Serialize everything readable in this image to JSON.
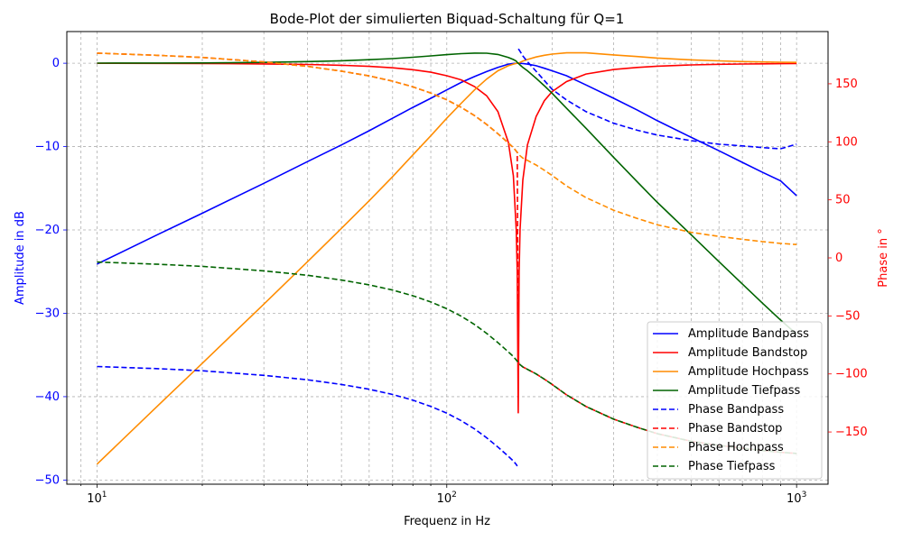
{
  "chart_data": {
    "type": "line",
    "title": "Bode-Plot der simulierten Biquad-Schaltung für Q=1",
    "xlabel": "Frequenz in Hz",
    "ylabel_left": "Amplitude in dB",
    "ylabel_right": "Phase in °",
    "xscale": "log",
    "xlim": [
      8.2,
      1230
    ],
    "ylim_left": [
      -50.5,
      3.8
    ],
    "ylim_right": [
      -195,
      195
    ],
    "x_ticks": [
      10,
      100,
      1000
    ],
    "x_tick_labels": [
      "10^1",
      "10^2",
      "10^3"
    ],
    "y_left_ticks": [
      -50,
      -40,
      -30,
      -20,
      -10,
      0
    ],
    "y_left_tick_labels": [
      "−50",
      "−40",
      "−30",
      "−20",
      "−10",
      "0"
    ],
    "y_right_ticks": [
      -150,
      -100,
      -50,
      0,
      50,
      100,
      150
    ],
    "y_right_tick_labels": [
      "−150",
      "−100",
      "−50",
      "0",
      "50",
      "100",
      "150"
    ],
    "left_axis_color": "#0000ff",
    "right_axis_color": "#ff0000",
    "grid": true,
    "legend_position": "lower-right",
    "filter": {
      "f0": 160,
      "Q": 1
    },
    "x": [
      10,
      15,
      20,
      30,
      40,
      50,
      60,
      70,
      80,
      90,
      100,
      110,
      120,
      130,
      140,
      150,
      155,
      158,
      159,
      160,
      161,
      162,
      165,
      170,
      180,
      190,
      200,
      220,
      250,
      300,
      350,
      400,
      500,
      600,
      700,
      800,
      900,
      1000
    ],
    "series": [
      {
        "name": "Amplitude Bandpass",
        "axis": "left",
        "color": "#0000ff",
        "dash": "solid",
        "values": [
          -24.1,
          -20.5,
          -18.0,
          -14.4,
          -11.8,
          -9.8,
          -8.1,
          -6.6,
          -5.3,
          -4.2,
          -3.2,
          -2.3,
          -1.6,
          -1.0,
          -0.5,
          -0.1,
          -0.03,
          -0.01,
          0,
          0,
          0,
          -0.01,
          -0.04,
          -0.1,
          -0.3,
          -0.6,
          -0.9,
          -1.5,
          -2.6,
          -4.2,
          -5.6,
          -6.9,
          -8.9,
          -10.5,
          -11.9,
          -13.1,
          -14.1,
          -15.9
        ]
      },
      {
        "name": "Amplitude Bandstop",
        "axis": "left",
        "color": "#ff0000",
        "dash": "solid",
        "values": [
          -0.01,
          -0.02,
          -0.03,
          -0.08,
          -0.15,
          -0.25,
          -0.38,
          -0.55,
          -0.78,
          -1.08,
          -1.5,
          -2.0,
          -2.8,
          -3.9,
          -5.8,
          -9.5,
          -13.5,
          -20.0,
          -25.0,
          -42.0,
          -25.0,
          -20.0,
          -14.0,
          -9.8,
          -6.4,
          -4.5,
          -3.4,
          -2.2,
          -1.3,
          -0.75,
          -0.5,
          -0.35,
          -0.2,
          -0.13,
          -0.09,
          -0.07,
          -0.05,
          -0.04
        ]
      },
      {
        "name": "Amplitude Hochpass",
        "axis": "left",
        "color": "#ff8c00",
        "dash": "solid",
        "values": [
          -48.1,
          -41.0,
          -36.0,
          -28.9,
          -23.8,
          -19.8,
          -16.5,
          -13.6,
          -11.0,
          -8.7,
          -6.6,
          -4.8,
          -3.2,
          -1.9,
          -0.9,
          -0.3,
          -0.1,
          -0.02,
          0,
          0,
          0.03,
          0.1,
          0.25,
          0.45,
          0.75,
          0.95,
          1.1,
          1.25,
          1.25,
          1.0,
          0.8,
          0.62,
          0.4,
          0.28,
          0.2,
          0.15,
          0.12,
          0.1
        ]
      },
      {
        "name": "Amplitude Tiefpass",
        "axis": "left",
        "color": "#006400",
        "dash": "solid",
        "values": [
          0.01,
          0.02,
          0.04,
          0.1,
          0.2,
          0.3,
          0.42,
          0.56,
          0.72,
          0.88,
          1.03,
          1.15,
          1.22,
          1.2,
          1.05,
          0.7,
          0.45,
          0.25,
          0.1,
          0,
          -0.1,
          -0.2,
          -0.5,
          -0.9,
          -1.8,
          -2.7,
          -3.6,
          -5.4,
          -7.8,
          -11.3,
          -14.2,
          -16.7,
          -20.6,
          -23.8,
          -26.5,
          -28.8,
          -30.8,
          -32.5
        ]
      },
      {
        "name": "Phase Bandpass",
        "axis": "right",
        "color": "#0000ff",
        "dash": "dashed",
        "values": [
          -93.6,
          -95.5,
          -97.3,
          -101.2,
          -105.0,
          -109.1,
          -113.2,
          -117.7,
          -122.6,
          -128.0,
          -133.8,
          -140.3,
          -147.4,
          -155.0,
          -163.0,
          -171.0,
          -175.0,
          -178.0,
          -179.4,
          180,
          179.2,
          178.0,
          174.0,
          169.0,
          160.8,
          152.8,
          145.3,
          136.0,
          126.0,
          116.0,
          110.0,
          105.8,
          101.0,
          98.0,
          96.5,
          95.0,
          94.0,
          98.0
        ]
      },
      {
        "name": "Phase Bandstop",
        "axis": "right",
        "color": "#ff0000",
        "dash": "dashed",
        "values": [
          176.4,
          174.5,
          172.7,
          168.8,
          165.0,
          160.9,
          156.8,
          152.3,
          147.4,
          142.0,
          136.2,
          129.7,
          122.6,
          115.0,
          107.0,
          99.0,
          95.0,
          92.0,
          91.0,
          -90,
          -91.0,
          -92.0,
          -94.0,
          -96.0,
          -100.0,
          -104.5,
          -109.0,
          -118.0,
          -128.0,
          -139.0,
          -146.0,
          -151.5,
          -158.0,
          -161.5,
          -164.0,
          -166.0,
          -167.5,
          -168.5
        ]
      },
      {
        "name": "Phase Hochpass",
        "axis": "right",
        "color": "#ff8c00",
        "dash": "dashed",
        "values": [
          176.4,
          174.5,
          172.7,
          168.8,
          165.0,
          160.9,
          156.8,
          152.3,
          147.4,
          142.0,
          136.2,
          129.7,
          122.6,
          115.0,
          107.0,
          99.0,
          95.0,
          92.0,
          91.0,
          90.0,
          89.0,
          88.0,
          86.0,
          84.0,
          80.0,
          75.5,
          71.0,
          62.0,
          52.0,
          41.0,
          34.0,
          28.5,
          22.0,
          18.5,
          16.0,
          14.0,
          12.5,
          11.5
        ]
      },
      {
        "name": "Phase Tiefpass",
        "axis": "right",
        "color": "#006400",
        "dash": "dashed",
        "values": [
          -3.6,
          -5.5,
          -7.3,
          -11.2,
          -15.0,
          -19.1,
          -23.2,
          -27.7,
          -32.6,
          -38.0,
          -43.8,
          -50.3,
          -57.4,
          -65.0,
          -73.0,
          -81.0,
          -85.0,
          -88.0,
          -89.0,
          -90.0,
          -91.0,
          -92.0,
          -94.0,
          -96.0,
          -100.0,
          -104.5,
          -109.0,
          -118.0,
          -128.0,
          -139.0,
          -146.0,
          -151.5,
          -158.0,
          -161.5,
          -164.0,
          -166.0,
          -167.5,
          -168.5
        ]
      }
    ]
  }
}
